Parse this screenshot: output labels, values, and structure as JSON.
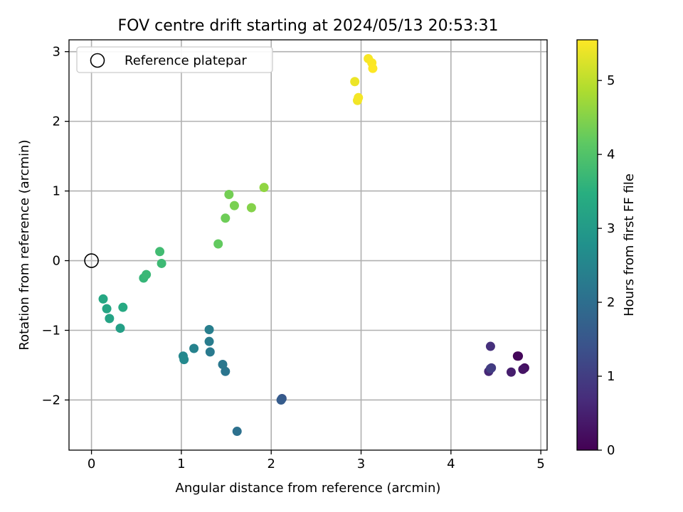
{
  "chart_data": {
    "type": "scatter",
    "title": "FOV centre drift starting at 2024/05/13 20:53:31",
    "xlabel": "Angular distance from reference (arcmin)",
    "ylabel": "Rotation from reference (arcmin)",
    "xlim": [
      -0.25,
      5.07
    ],
    "ylim": [
      -2.72,
      3.17
    ],
    "xticks": [
      0,
      1,
      2,
      3,
      4,
      5
    ],
    "xtick_labels": [
      "0",
      "1",
      "2",
      "3",
      "4",
      "5"
    ],
    "yticks": [
      -2,
      -1,
      0,
      1,
      2,
      3
    ],
    "ytick_labels": [
      "−2",
      "−1",
      "0",
      "1",
      "2",
      "3"
    ],
    "grid": true,
    "legend": {
      "placement": "top-left",
      "entries": [
        "Reference platepar"
      ]
    },
    "colorbar": {
      "label": "Hours from first FF file",
      "colormap": "viridis",
      "range": [
        0,
        5.55
      ],
      "ticks": [
        0,
        1,
        2,
        3,
        4,
        5
      ],
      "tick_labels": [
        "0",
        "1",
        "2",
        "3",
        "4",
        "5"
      ]
    },
    "reference_point": {
      "x": 0,
      "y": 0,
      "marker": "open circle",
      "color": "#000000"
    },
    "points": [
      {
        "x": 4.74,
        "y": -1.37,
        "t": 0.0
      },
      {
        "x": 4.75,
        "y": -1.37,
        "t": 0.1
      },
      {
        "x": 4.82,
        "y": -1.54,
        "t": 0.2
      },
      {
        "x": 4.8,
        "y": -1.56,
        "t": 0.3
      },
      {
        "x": 4.67,
        "y": -1.6,
        "t": 0.45
      },
      {
        "x": 4.42,
        "y": -1.59,
        "t": 0.6
      },
      {
        "x": 4.44,
        "y": -1.23,
        "t": 0.75
      },
      {
        "x": 4.45,
        "y": -1.54,
        "t": 0.9
      },
      {
        "x": 4.44,
        "y": -1.55,
        "t": 1.0
      },
      {
        "x": 2.12,
        "y": -1.98,
        "t": 1.5
      },
      {
        "x": 2.11,
        "y": -2.0,
        "t": 1.6
      },
      {
        "x": 1.62,
        "y": -2.45,
        "t": 2.05
      },
      {
        "x": 1.49,
        "y": -1.59,
        "t": 2.15
      },
      {
        "x": 1.46,
        "y": -1.49,
        "t": 2.2
      },
      {
        "x": 1.32,
        "y": -1.31,
        "t": 2.25
      },
      {
        "x": 1.31,
        "y": -1.16,
        "t": 2.3
      },
      {
        "x": 1.31,
        "y": -0.99,
        "t": 2.35
      },
      {
        "x": 1.14,
        "y": -1.26,
        "t": 2.45
      },
      {
        "x": 1.02,
        "y": -1.37,
        "t": 2.55
      },
      {
        "x": 1.03,
        "y": -1.42,
        "t": 2.6
      },
      {
        "x": 0.32,
        "y": -0.97,
        "t": 3.1
      },
      {
        "x": 0.2,
        "y": -0.83,
        "t": 3.2
      },
      {
        "x": 0.17,
        "y": -0.69,
        "t": 3.25
      },
      {
        "x": 0.13,
        "y": -0.55,
        "t": 3.3
      },
      {
        "x": 0.35,
        "y": -0.67,
        "t": 3.35
      },
      {
        "x": 0.58,
        "y": -0.25,
        "t": 3.65
      },
      {
        "x": 0.61,
        "y": -0.2,
        "t": 3.7
      },
      {
        "x": 0.78,
        "y": -0.04,
        "t": 3.75
      },
      {
        "x": 0.76,
        "y": 0.13,
        "t": 3.8
      },
      {
        "x": 1.41,
        "y": 0.24,
        "t": 4.2
      },
      {
        "x": 1.49,
        "y": 0.61,
        "t": 4.3
      },
      {
        "x": 1.53,
        "y": 0.95,
        "t": 4.35
      },
      {
        "x": 1.59,
        "y": 0.79,
        "t": 4.4
      },
      {
        "x": 1.78,
        "y": 0.76,
        "t": 4.5
      },
      {
        "x": 1.92,
        "y": 1.05,
        "t": 4.6
      },
      {
        "x": 2.93,
        "y": 2.57,
        "t": 5.4
      },
      {
        "x": 2.96,
        "y": 2.3,
        "t": 5.45
      },
      {
        "x": 2.97,
        "y": 2.34,
        "t": 5.47
      },
      {
        "x": 3.08,
        "y": 2.9,
        "t": 5.5
      },
      {
        "x": 3.12,
        "y": 2.84,
        "t": 5.52
      },
      {
        "x": 3.13,
        "y": 2.76,
        "t": 5.55
      }
    ]
  }
}
